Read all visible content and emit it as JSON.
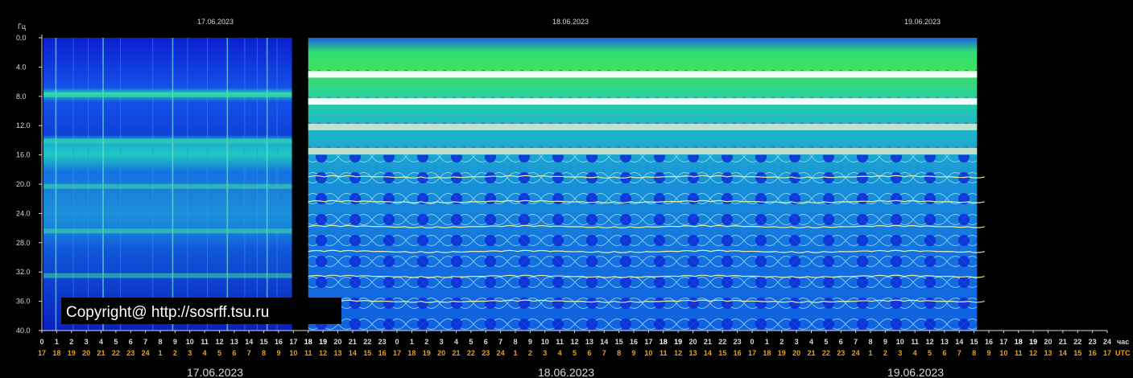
{
  "chart_data": {
    "type": "heatmap",
    "y_axis_unit": "Гц",
    "y_ticks": [
      "0.0",
      "4.0",
      "8.0",
      "12.0",
      "16.0",
      "20.0",
      "24.0",
      "28.0",
      "32.0",
      "36.0",
      "40.0"
    ],
    "ylim": [
      0,
      40
    ],
    "x_axis_unit_local": "час",
    "x_axis_unit_utc": "UTC",
    "dates_top": [
      "17.06.2023",
      "18.06.2023",
      "19.06.2023"
    ],
    "dates_bottom": [
      "17.06.2023",
      "18.06.2023",
      "19.06.2023"
    ],
    "hour_labels_local": [
      "0",
      "1",
      "2",
      "3",
      "4",
      "5",
      "6",
      "7",
      "8",
      "9",
      "10",
      "11",
      "12",
      "13",
      "14",
      "15",
      "16",
      "17",
      "18",
      "19",
      "20",
      "21",
      "22",
      "23",
      "0",
      "1",
      "2",
      "3",
      "4",
      "5",
      "6",
      "7",
      "8",
      "9",
      "10",
      "11",
      "12",
      "13",
      "14",
      "15",
      "16",
      "17",
      "18",
      "19",
      "20",
      "21",
      "22",
      "23",
      "0",
      "1",
      "2",
      "3",
      "4",
      "5",
      "6",
      "7",
      "8",
      "9",
      "10",
      "11",
      "12",
      "13",
      "14",
      "15",
      "16",
      "17",
      "18",
      "19",
      "20",
      "21",
      "22",
      "23",
      "24"
    ],
    "hour_labels_utc": [
      "17",
      "18",
      "19",
      "20",
      "21",
      "22",
      "23",
      "24",
      "1",
      "2",
      "3",
      "4",
      "5",
      "6",
      "7",
      "8",
      "9",
      "10",
      "11",
      "12",
      "13",
      "14",
      "15",
      "16",
      "17",
      "18",
      "19",
      "20",
      "21",
      "22",
      "23",
      "24",
      "1",
      "2",
      "3",
      "4",
      "5",
      "6",
      "7",
      "8",
      "9",
      "10",
      "11",
      "12",
      "13",
      "14",
      "15",
      "16",
      "17",
      "18",
      "19",
      "20",
      "21",
      "22",
      "23",
      "24",
      "1",
      "2",
      "3",
      "4",
      "5",
      "6",
      "7",
      "8",
      "9",
      "10",
      "11",
      "12",
      "13",
      "14",
      "15",
      "16",
      "17"
    ],
    "schumann_bands_hz": [
      7.8,
      14.1,
      20.3,
      26.4,
      32.5
    ],
    "gap_hours": [
      16.9,
      18.0
    ],
    "data_end_hour": 63.2,
    "legend": "none"
  },
  "copyright": "Copyright@ http://sosrff.tsu.ru",
  "colors": {
    "background": "#000000",
    "spectrogram_low": "#0a1ac8",
    "spectrogram_mid": "#18c8c8",
    "spectrogram_high": "#30e060",
    "band_hot": "#ffffff",
    "band_red": "#e02020",
    "utc_labels": "#e6a020"
  }
}
